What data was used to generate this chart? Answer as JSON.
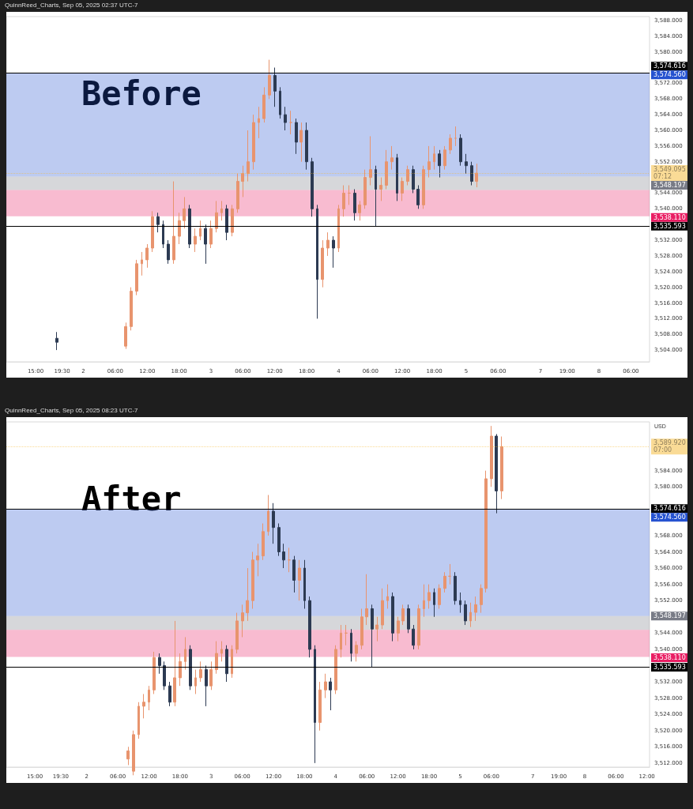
{
  "chart_data": [
    {
      "type": "candlestick",
      "title": "QuinnReed_Charts, Sep 05, 2025 02:37 UTC-7",
      "annotations": [
        "Before"
      ],
      "categories": [
        null,
        null,
        null,
        null,
        null,
        "15:00",
        null,
        null,
        null,
        null,
        "19:30",
        null,
        null,
        null,
        "2",
        null,
        null,
        null,
        null,
        null,
        "06:00",
        null,
        null,
        null,
        null,
        null,
        "12:00",
        null,
        null,
        null,
        null,
        null,
        "18:00",
        null,
        null,
        null,
        null,
        null,
        "3",
        null,
        null,
        null,
        null,
        null,
        "06:00",
        null,
        null,
        null,
        null,
        null,
        "12:00",
        null,
        null,
        null,
        null,
        null,
        "18:00",
        null,
        null,
        null,
        null,
        null,
        "4",
        null,
        null,
        null,
        null,
        null,
        "06:00",
        null,
        null,
        null,
        null,
        null,
        "12:00",
        null,
        null,
        null,
        null,
        null,
        "18:00",
        null,
        null,
        null,
        null,
        null,
        "5",
        null,
        null,
        null,
        null,
        null,
        "06:00",
        null,
        null,
        null,
        null,
        null,
        null,
        null,
        "7",
        null,
        null,
        null,
        null,
        "19:00",
        null,
        null,
        null,
        null,
        null,
        "8",
        null,
        null,
        null,
        null,
        null,
        "06:00",
        null,
        null,
        null
      ],
      "ohlc": [
        null,
        null,
        null,
        null,
        null,
        null,
        null,
        null,
        null,
        [
          3507,
          3508.6,
          3504,
          3506
        ],
        null,
        null,
        null,
        null,
        null,
        null,
        null,
        null,
        null,
        null,
        null,
        null,
        [
          3505,
          3511,
          3504.3,
          3510
        ],
        [
          3510,
          3520,
          3509,
          3519
        ],
        [
          3519,
          3527,
          3518,
          3526
        ],
        [
          3526,
          3529,
          3523,
          3527
        ],
        [
          3527,
          3531,
          3525,
          3530
        ],
        [
          3530,
          3539.4,
          3529,
          3538
        ],
        [
          3538,
          3539,
          3534,
          3536
        ],
        [
          3536,
          3537,
          3530,
          3531
        ],
        [
          3531,
          3532,
          3526,
          3527
        ],
        [
          3527,
          3547,
          3526,
          3533
        ],
        [
          3533,
          3539,
          3531,
          3537
        ],
        [
          3537,
          3543,
          3535,
          3540
        ],
        [
          3540,
          3541,
          3530,
          3531
        ],
        [
          3531,
          3535,
          3529,
          3533
        ],
        [
          3533,
          3537,
          3532,
          3535
        ],
        [
          3535,
          3536,
          3526,
          3531
        ],
        [
          3531,
          3537,
          3530,
          3535
        ],
        [
          3535,
          3542,
          3534,
          3539
        ],
        [
          3539,
          3542,
          3537,
          3540
        ],
        [
          3540,
          3541,
          3532,
          3534
        ],
        [
          3534,
          3541,
          3533,
          3540
        ],
        [
          3540,
          3549,
          3539,
          3547
        ],
        [
          3547,
          3551,
          3543,
          3549
        ],
        [
          3549,
          3560,
          3547,
          3552
        ],
        [
          3552,
          3564,
          3550,
          3562
        ],
        [
          3562,
          3566,
          3558,
          3563
        ],
        [
          3563,
          3571,
          3562,
          3569
        ],
        [
          3569,
          3578,
          3568,
          3574
        ],
        [
          3574,
          3576,
          3566,
          3570
        ],
        [
          3570,
          3571,
          3563,
          3564
        ],
        [
          3564,
          3566,
          3560,
          3562
        ],
        [
          3562,
          3565,
          3559,
          3562
        ],
        [
          3562,
          3563,
          3554,
          3557
        ],
        [
          3557,
          3562,
          3552,
          3560
        ],
        [
          3560,
          3562,
          3550,
          3552
        ],
        [
          3552,
          3553,
          3538,
          3540
        ],
        [
          3540,
          3541,
          3512,
          3522
        ],
        [
          3522,
          3532,
          3520,
          3530
        ],
        [
          3530,
          3534,
          3528,
          3532
        ],
        [
          3532,
          3533,
          3525,
          3530
        ],
        [
          3530,
          3541,
          3529,
          3540
        ],
        [
          3540,
          3546,
          3538,
          3544
        ],
        [
          3544,
          3546,
          3541,
          3544
        ],
        [
          3544,
          3545,
          3537,
          3539
        ],
        [
          3539,
          3542,
          3537,
          3541
        ],
        [
          3541,
          3550,
          3540,
          3548
        ],
        [
          3548,
          3558.5,
          3546,
          3550
        ],
        [
          3550,
          3551,
          3535.6,
          3545
        ],
        [
          3545,
          3548,
          3542,
          3546
        ],
        [
          3546,
          3555,
          3545,
          3552
        ],
        [
          3552,
          3556,
          3550,
          3553
        ],
        [
          3553,
          3554,
          3542,
          3544
        ],
        [
          3544,
          3548,
          3542,
          3547
        ],
        [
          3547,
          3551,
          3546,
          3550
        ],
        [
          3550,
          3551,
          3544,
          3545
        ],
        [
          3545,
          3546,
          3540,
          3541
        ],
        [
          3541,
          3551,
          3540,
          3550
        ],
        [
          3550,
          3556,
          3548,
          3552
        ],
        [
          3552,
          3556,
          3550,
          3554
        ],
        [
          3554,
          3555,
          3548,
          3551
        ],
        [
          3551,
          3556,
          3550,
          3555
        ],
        [
          3555,
          3559,
          3554,
          3558
        ],
        [
          3558,
          3561,
          3556,
          3558
        ],
        [
          3558,
          3559,
          3551,
          3552
        ],
        [
          3552,
          3554,
          3549,
          3551
        ],
        [
          3551,
          3552,
          3546,
          3547
        ],
        [
          3547,
          3551.5,
          3545.5,
          3549.1
        ],
        null,
        null,
        null,
        null,
        null,
        null,
        null,
        null,
        null,
        null,
        null,
        null,
        null,
        null,
        null,
        null,
        null,
        null,
        null,
        null,
        null,
        null,
        null,
        null,
        null,
        null,
        null,
        null,
        null,
        null,
        null,
        null
      ],
      "ylim": [
        3501,
        3589
      ],
      "yticks": [
        {
          "value": 3504,
          "label": "3,504.000"
        },
        {
          "value": 3508,
          "label": "3,508.000"
        },
        {
          "value": 3512,
          "label": "3,512.000"
        },
        {
          "value": 3516,
          "label": "3,516.000"
        },
        {
          "value": 3520,
          "label": "3,520.000"
        },
        {
          "value": 3524,
          "label": "3,524.000"
        },
        {
          "value": 3528,
          "label": "3,528.000"
        },
        {
          "value": 3532,
          "label": "3,532.000"
        },
        {
          "value": 3540,
          "label": "3,540.000"
        },
        {
          "value": 3544,
          "label": "3,544.000"
        },
        {
          "value": 3552,
          "label": "3,552.000"
        },
        {
          "value": 3556,
          "label": "3,556.000"
        },
        {
          "value": 3560,
          "label": "3,560.000"
        },
        {
          "value": 3564,
          "label": "3,564.000"
        },
        {
          "value": 3568,
          "label": "3,568.000"
        },
        {
          "value": 3572,
          "label": "3,572.000"
        },
        {
          "value": 3580,
          "label": "3,580.000"
        },
        {
          "value": 3584,
          "label": "3,584.000"
        },
        {
          "value": 3588,
          "label": "3,588.000"
        }
      ],
      "ref_lines": [
        {
          "axis": "y",
          "value": 3574.616,
          "label": "3,574.616",
          "color": "#000000"
        },
        {
          "axis": "y",
          "value": 3535.593,
          "label": "3,535.593",
          "color": "#000000"
        },
        {
          "axis": "y",
          "value": 3549.095,
          "label": "3,549.095\n07:12",
          "color": "#f5b82e",
          "line_style": "dotted"
        }
      ],
      "bands": [
        {
          "axis": "y",
          "from": 3548.197,
          "to": 3574.56,
          "label": "3,574.560",
          "color": "#2552d0"
        },
        {
          "axis": "y",
          "from": 3544.8,
          "to": 3548.197,
          "label": "3,548.197",
          "color": "#787b86"
        },
        {
          "axis": "y",
          "from": 3544.8,
          "to": 3538.11,
          "label": "3,538.110",
          "color": "#e91e63"
        }
      ],
      "grid": false
    },
    {
      "type": "candlestick",
      "title": "QuinnReed_Charts, Sep 05, 2025 08:23 UTC-7",
      "ylabel": "USD",
      "annotations": [
        "After"
      ],
      "categories": [
        null,
        null,
        null,
        null,
        null,
        "15:00",
        null,
        null,
        null,
        null,
        "19:30",
        null,
        null,
        null,
        null,
        "2",
        null,
        null,
        null,
        null,
        null,
        "06:00",
        null,
        null,
        null,
        null,
        null,
        "12:00",
        null,
        null,
        null,
        null,
        null,
        "18:00",
        null,
        null,
        null,
        null,
        null,
        "3",
        null,
        null,
        null,
        null,
        null,
        "06:00",
        null,
        null,
        null,
        null,
        null,
        "12:00",
        null,
        null,
        null,
        null,
        null,
        "18:00",
        null,
        null,
        null,
        null,
        null,
        "4",
        null,
        null,
        null,
        null,
        null,
        "06:00",
        null,
        null,
        null,
        null,
        null,
        "12:00",
        null,
        null,
        null,
        null,
        null,
        "18:00",
        null,
        null,
        null,
        null,
        null,
        "5",
        null,
        null,
        null,
        null,
        null,
        "06:00",
        null,
        null,
        null,
        null,
        null,
        null,
        null,
        "7",
        null,
        null,
        null,
        null,
        "19:00",
        null,
        null,
        null,
        null,
        "8",
        null,
        null,
        null,
        null,
        null,
        "06:00",
        null,
        null,
        null,
        null,
        null,
        "12:00"
      ],
      "ohlc": [
        null,
        null,
        null,
        null,
        null,
        null,
        null,
        null,
        null,
        null,
        null,
        null,
        null,
        null,
        null,
        null,
        null,
        null,
        null,
        null,
        null,
        null,
        null,
        [
          3513,
          3516,
          3511.5,
          3515
        ],
        [
          3510,
          3520,
          3509,
          3519
        ],
        [
          3519,
          3527,
          3518,
          3526
        ],
        [
          3526,
          3529,
          3523,
          3527
        ],
        [
          3527,
          3531,
          3525,
          3530
        ],
        [
          3530,
          3539.4,
          3529,
          3538
        ],
        [
          3538,
          3539,
          3534,
          3536
        ],
        [
          3536,
          3537,
          3530,
          3531
        ],
        [
          3531,
          3532,
          3526,
          3527
        ],
        [
          3527,
          3547,
          3526,
          3533
        ],
        [
          3533,
          3539,
          3531,
          3537
        ],
        [
          3537,
          3543,
          3535,
          3540
        ],
        [
          3540,
          3541,
          3530,
          3531
        ],
        [
          3531,
          3535,
          3529,
          3533
        ],
        [
          3533,
          3537,
          3532,
          3535
        ],
        [
          3535,
          3536,
          3526,
          3531
        ],
        [
          3531,
          3537,
          3530,
          3535
        ],
        [
          3535,
          3542,
          3534,
          3539
        ],
        [
          3539,
          3542,
          3537,
          3540
        ],
        [
          3540,
          3541,
          3532,
          3534
        ],
        [
          3534,
          3541,
          3533,
          3540
        ],
        [
          3540,
          3549,
          3539,
          3547
        ],
        [
          3547,
          3551,
          3543,
          3549
        ],
        [
          3549,
          3560,
          3547,
          3552
        ],
        [
          3552,
          3564,
          3550,
          3562
        ],
        [
          3562,
          3566,
          3558,
          3563
        ],
        [
          3563,
          3571,
          3562,
          3569
        ],
        [
          3569,
          3578,
          3568,
          3574
        ],
        [
          3574,
          3576,
          3566,
          3570
        ],
        [
          3570,
          3571,
          3563,
          3564
        ],
        [
          3564,
          3566,
          3560,
          3562
        ],
        [
          3562,
          3565,
          3559,
          3562
        ],
        [
          3562,
          3563,
          3554,
          3557
        ],
        [
          3557,
          3562,
          3552,
          3560
        ],
        [
          3560,
          3562,
          3550,
          3552
        ],
        [
          3552,
          3553,
          3538,
          3540
        ],
        [
          3540,
          3541,
          3512,
          3522
        ],
        [
          3522,
          3532,
          3520,
          3530
        ],
        [
          3530,
          3534,
          3528,
          3532
        ],
        [
          3532,
          3533,
          3525,
          3530
        ],
        [
          3530,
          3541,
          3529,
          3540
        ],
        [
          3540,
          3546,
          3538,
          3544
        ],
        [
          3544,
          3546,
          3541,
          3544
        ],
        [
          3544,
          3545,
          3537,
          3539
        ],
        [
          3539,
          3542,
          3537,
          3541
        ],
        [
          3541,
          3550,
          3540,
          3548
        ],
        [
          3548,
          3558.5,
          3546,
          3550
        ],
        [
          3550,
          3551,
          3535.6,
          3545
        ],
        [
          3545,
          3548,
          3542,
          3546
        ],
        [
          3546,
          3555,
          3545,
          3552
        ],
        [
          3552,
          3556,
          3550,
          3553
        ],
        [
          3553,
          3554,
          3542,
          3544
        ],
        [
          3544,
          3548,
          3542,
          3547
        ],
        [
          3547,
          3551,
          3546,
          3550
        ],
        [
          3550,
          3551,
          3544,
          3545
        ],
        [
          3545,
          3546,
          3540,
          3541
        ],
        [
          3541,
          3551,
          3540,
          3550
        ],
        [
          3550,
          3556,
          3548,
          3552
        ],
        [
          3552,
          3556,
          3550,
          3554
        ],
        [
          3554,
          3555,
          3548,
          3551
        ],
        [
          3551,
          3556,
          3550,
          3555
        ],
        [
          3555,
          3559,
          3554,
          3558
        ],
        [
          3558,
          3561,
          3556,
          3558
        ],
        [
          3558,
          3559,
          3551,
          3552
        ],
        [
          3552,
          3554,
          3549,
          3551
        ],
        [
          3551,
          3552,
          3546,
          3547
        ],
        [
          3547,
          3551.5,
          3545.5,
          3549.1
        ],
        [
          3549.1,
          3553,
          3547,
          3551
        ],
        [
          3551,
          3556,
          3549,
          3555
        ],
        [
          3555,
          3584,
          3554,
          3582
        ],
        [
          3582,
          3595,
          3580,
          3592.5
        ],
        [
          3592.5,
          3593,
          3573.5,
          3579
        ],
        [
          3579,
          3592.4,
          3577,
          3589.92
        ],
        null,
        null,
        null,
        null,
        null,
        null,
        null,
        null,
        null,
        null,
        null,
        null,
        null,
        null,
        null,
        null,
        null,
        null,
        null,
        null,
        null,
        null,
        null,
        null,
        null,
        null,
        null,
        null
      ],
      "ylim": [
        3511,
        3596
      ],
      "yticks": [
        {
          "value": 3512,
          "label": "3,512.000"
        },
        {
          "value": 3516,
          "label": "3,516.000"
        },
        {
          "value": 3520,
          "label": "3,520.000"
        },
        {
          "value": 3524,
          "label": "3,524.000"
        },
        {
          "value": 3528,
          "label": "3,528.000"
        },
        {
          "value": 3532,
          "label": "3,532.000"
        },
        {
          "value": 3540,
          "label": "3,540.000"
        },
        {
          "value": 3544,
          "label": "3,544.000"
        },
        {
          "value": 3552,
          "label": "3,552.000"
        },
        {
          "value": 3556,
          "label": "3,556.000"
        },
        {
          "value": 3560,
          "label": "3,560.000"
        },
        {
          "value": 3564,
          "label": "3,564.000"
        },
        {
          "value": 3568,
          "label": "3,568.000"
        },
        {
          "value": 3580,
          "label": "3,580.000"
        },
        {
          "value": 3584,
          "label": "3,584.000"
        }
      ],
      "ref_lines": [
        {
          "axis": "y",
          "value": 3574.616,
          "label": "3,574.616",
          "color": "#000000"
        },
        {
          "axis": "y",
          "value": 3535.593,
          "label": "3,535.593",
          "color": "#000000"
        },
        {
          "axis": "y",
          "value": 3589.92,
          "label": "3,589.920\n07:00",
          "color": "#f5b82e",
          "line_style": "dotted"
        }
      ],
      "bands": [
        {
          "axis": "y",
          "from": 3548.197,
          "to": 3574.56,
          "label": "3,574.560",
          "color": "#2552d0"
        },
        {
          "axis": "y",
          "from": 3544.8,
          "to": 3548.197,
          "label": "3,548.197",
          "color": "#787b86"
        },
        {
          "axis": "y",
          "from": 3544.8,
          "to": 3538.11,
          "label": "3,538.110",
          "color": "#e91e63"
        }
      ],
      "grid": false
    }
  ]
}
